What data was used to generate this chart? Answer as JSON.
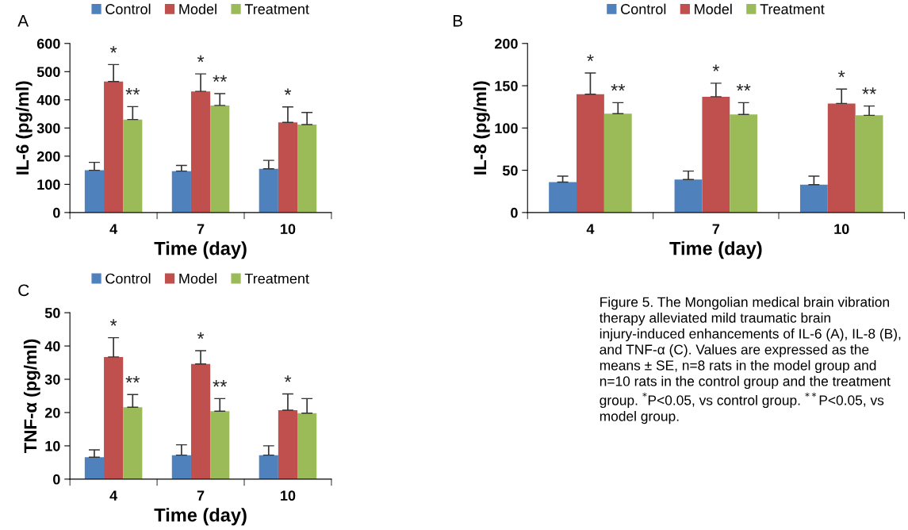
{
  "chart_data": [
    {
      "type": "bar",
      "annotations": [
        "A"
      ],
      "xlabel": "Time (day)",
      "ylabel": "IL-6 (pg/ml)",
      "categories": [
        "4",
        "7",
        "10"
      ],
      "ylim": [
        0,
        600
      ],
      "yticks": [
        0,
        100,
        200,
        300,
        400,
        500,
        600
      ],
      "legend": "top",
      "grid": false,
      "series": [
        {
          "name": "Control",
          "color": "#4f81bd",
          "values": [
            150,
            147,
            155
          ],
          "errors": [
            [
              150,
              178
            ],
            [
              147,
              167
            ],
            [
              155,
              185
            ]
          ]
        },
        {
          "name": "Model",
          "color": "#c0504d",
          "values": [
            465,
            430,
            320
          ],
          "errors": [
            [
              465,
              525
            ],
            [
              430,
              492
            ],
            [
              320,
              375
            ]
          ],
          "value_labels": [
            "*",
            "*",
            "*"
          ]
        },
        {
          "name": "Treatment",
          "color": "#9bbb59",
          "values": [
            330,
            380,
            312
          ],
          "errors": [
            [
              330,
              376
            ],
            [
              380,
              422
            ],
            [
              312,
              355
            ]
          ],
          "value_labels": [
            "**",
            "**",
            null
          ]
        }
      ]
    },
    {
      "type": "bar",
      "annotations": [
        "B"
      ],
      "xlabel": "Time (day)",
      "ylabel": "IL-8 (pg/ml)",
      "categories": [
        "4",
        "7",
        "10"
      ],
      "ylim": [
        0,
        200
      ],
      "yticks": [
        0,
        50,
        100,
        150,
        200
      ],
      "legend": "top",
      "grid": false,
      "series": [
        {
          "name": "Control",
          "color": "#4f81bd",
          "values": [
            36,
            39,
            33
          ],
          "errors": [
            [
              36,
              43
            ],
            [
              39,
              49
            ],
            [
              33,
              43
            ]
          ]
        },
        {
          "name": "Model",
          "color": "#c0504d",
          "values": [
            140,
            137,
            129
          ],
          "errors": [
            [
              140,
              165
            ],
            [
              137,
              153
            ],
            [
              129,
              146
            ]
          ],
          "value_labels": [
            "*",
            "*",
            "*"
          ]
        },
        {
          "name": "Treatment",
          "color": "#9bbb59",
          "values": [
            117,
            116,
            115
          ],
          "errors": [
            [
              117,
              130
            ],
            [
              116,
              130
            ],
            [
              115,
              126
            ]
          ],
          "value_labels": [
            "**",
            "**",
            "**"
          ]
        }
      ]
    },
    {
      "type": "bar",
      "annotations": [
        "C",
        "Figure 5. The Mongolian medical brain vibration therapy alleviated mild traumatic brain injury-induced enhancements of IL-6 (A), IL-8 (B), and TNF-α (C). Values are expressed as the means ± SE, n=8 rats in the model group and n=10 rats in the control group and the treatment group. $^{*}$P<0.05, vs control group. $^{**}$P<0.05, vs model group."
      ],
      "xlabel": "Time (day)",
      "ylabel": "TNF-α (pg/ml)",
      "categories": [
        "4",
        "7",
        "10"
      ],
      "ylim": [
        0,
        50
      ],
      "yticks": [
        0,
        10,
        20,
        30,
        40,
        50
      ],
      "legend": "top",
      "grid": false,
      "series": [
        {
          "name": "Control",
          "color": "#4f81bd",
          "values": [
            6.6,
            7.2,
            7.2
          ],
          "errors": [
            [
              6.6,
              8.8
            ],
            [
              7.2,
              10.3
            ],
            [
              7.2,
              10.0
            ]
          ]
        },
        {
          "name": "Model",
          "color": "#c0504d",
          "values": [
            36.7,
            34.6,
            20.7
          ],
          "errors": [
            [
              36.7,
              42.5
            ],
            [
              34.6,
              38.6
            ],
            [
              20.7,
              25.6
            ]
          ],
          "value_labels": [
            "*",
            "*",
            "*"
          ]
        },
        {
          "name": "Treatment",
          "color": "#9bbb59",
          "values": [
            21.6,
            20.4,
            19.8
          ],
          "errors": [
            [
              21.6,
              25.4
            ],
            [
              20.4,
              24.2
            ],
            [
              19.8,
              24.2
            ]
          ],
          "value_labels": [
            "**",
            "**",
            null
          ]
        }
      ]
    }
  ]
}
